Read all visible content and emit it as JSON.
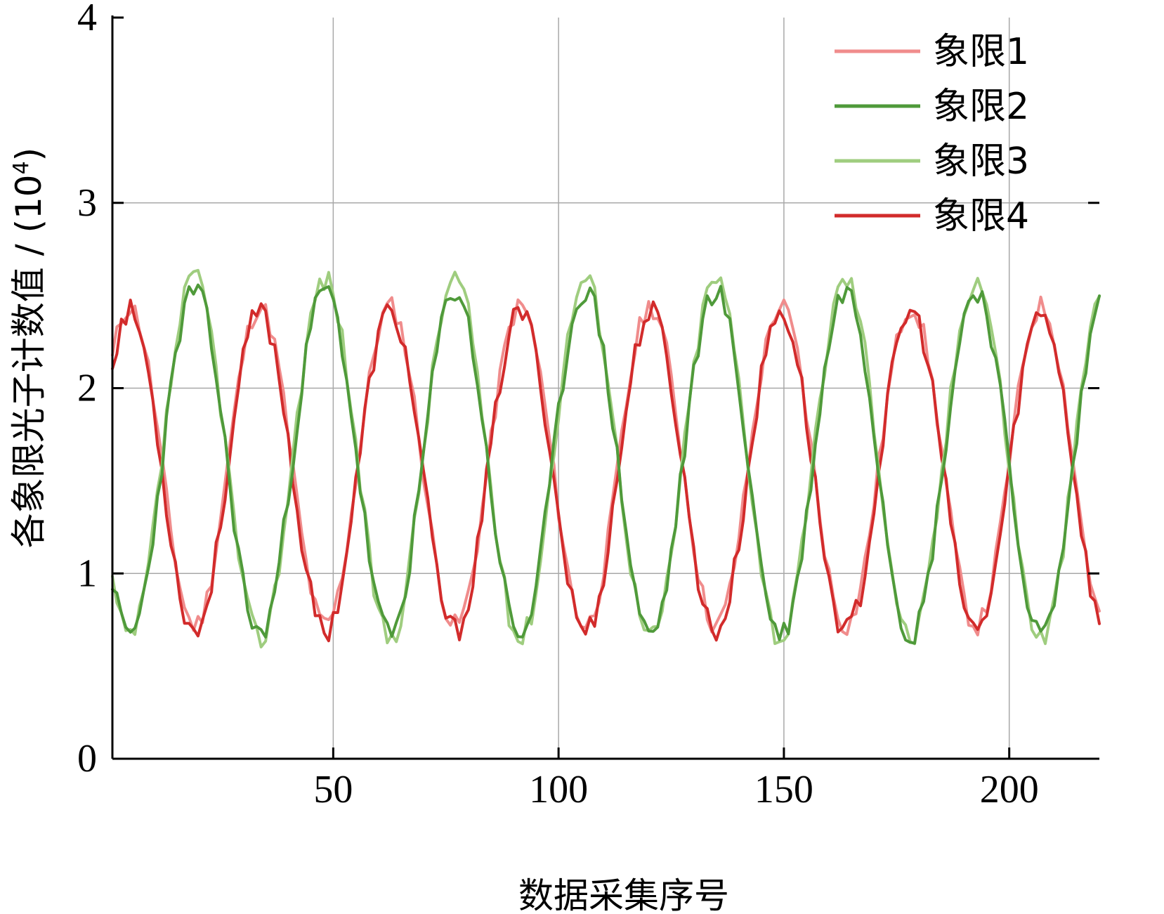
{
  "chart_data": {
    "type": "line",
    "xlabel": "数据采集序号",
    "ylabel": "各象限光子计数值 / (10",
    "ylabel_sup": "4",
    "ylabel_end": ")",
    "xlim": [
      1,
      220
    ],
    "ylim": [
      0,
      4
    ],
    "xticks": [
      50,
      100,
      150,
      200
    ],
    "xtick_labels": [
      "50",
      "100",
      "150",
      "200"
    ],
    "yticks": [
      0,
      1,
      2,
      3,
      4
    ],
    "ytick_labels": [
      "0",
      "1",
      "2",
      "3",
      "4"
    ],
    "grid": true,
    "legend_position": "top-right",
    "period": 28.9,
    "series": [
      {
        "name": "象限1",
        "color": "#f08c8c",
        "mean": 1.58,
        "amplitude": 0.86,
        "phase_x": 26.5,
        "noise": 0.06,
        "seed": 11
      },
      {
        "name": "象限2",
        "color": "#4f9a3a",
        "mean": 1.6,
        "amplitude": 0.93,
        "phase_x": 12.0,
        "noise": 0.07,
        "seed": 23
      },
      {
        "name": "象限3",
        "color": "#9fcd7f",
        "mean": 1.62,
        "amplitude": 0.97,
        "phase_x": 12.0,
        "noise": 0.07,
        "seed": 37
      },
      {
        "name": "象限4",
        "color": "#d22b2b",
        "mean": 1.55,
        "amplitude": 0.86,
        "phase_x": 26.5,
        "noise": 0.07,
        "seed": 53
      }
    ]
  }
}
